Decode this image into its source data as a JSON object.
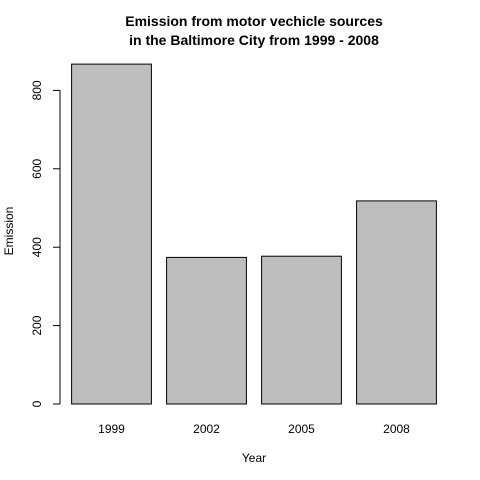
{
  "chart_data": {
    "type": "bar",
    "title_lines": [
      "Emission from motor vechicle sources",
      "in the Baltimore City from 1999 - 2008"
    ],
    "xlabel": "Year",
    "ylabel": "Emission",
    "categories": [
      "1999",
      "2002",
      "2005",
      "2008"
    ],
    "values": [
      867,
      374,
      377,
      518
    ],
    "ylim": [
      0,
      880
    ],
    "yticks": [
      0,
      200,
      400,
      600,
      800
    ],
    "bar_fill": "#bebebe",
    "bar_stroke": "#000000"
  }
}
